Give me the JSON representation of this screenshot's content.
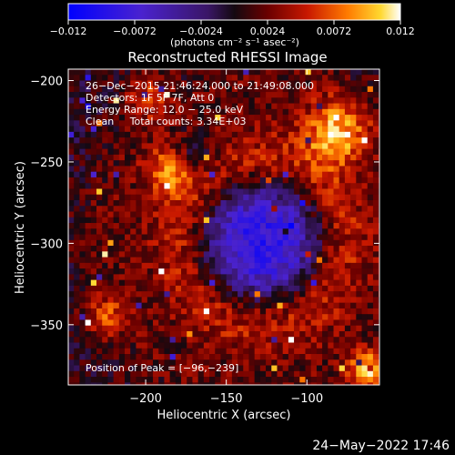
{
  "chart_data": {
    "type": "heatmap",
    "title": "Reconstructed RHESSI Image",
    "xlabel": "Heliocentric X (arcsec)",
    "ylabel": "Heliocentric Y (arcsec)",
    "xlim": [
      -248,
      -55
    ],
    "ylim": [
      -387,
      -193
    ],
    "x_ticks": [
      -200,
      -150,
      -100
    ],
    "x_tick_labels": [
      "−200",
      "−150",
      "−100"
    ],
    "y_ticks": [
      -200,
      -250,
      -300,
      -350
    ],
    "y_tick_labels": [
      "−200",
      "−250",
      "−300",
      "−350"
    ],
    "colorbar": {
      "range": [
        -0.012,
        0.012
      ],
      "ticks": [
        -0.012,
        -0.0072,
        -0.0024,
        0.0024,
        0.0072,
        0.012
      ],
      "tick_labels": [
        "−0.012",
        "−0.0072",
        "−0.0024",
        "0.0024",
        "0.0072",
        "0.012"
      ],
      "unit_label": "(photons cm⁻² s⁻¹ asec⁻²)"
    },
    "info_lines": [
      "26−Dec−2015 21:46:24.000 to 21:49:08.000",
      "Detectors: 1F 5F 7F, Att 0",
      "Energy Range: 12.0 − 25.0 keV",
      "Clean     Total counts: 3.34E+03"
    ],
    "peak_label": "Position of Peak = [−96,−239]",
    "peak": [
      -96,
      -239
    ],
    "features": {
      "ring_center": [
        -128,
        -299
      ],
      "ring_radius": 50,
      "ring_peak": 0.005,
      "core_center": [
        -128,
        -299
      ],
      "core_sigma": 22,
      "core_peak": -0.009,
      "bright_spots": [
        {
          "center": [
            -82,
            -232
          ],
          "sigma": 14,
          "peak": 0.008
        },
        {
          "center": [
            -62,
            -378
          ],
          "sigma": 8,
          "peak": 0.009
        },
        {
          "center": [
            -185,
            -255
          ],
          "sigma": 10,
          "peak": 0.007
        },
        {
          "center": [
            -200,
            -210
          ],
          "sigma": 10,
          "peak": 0.005
        },
        {
          "center": [
            -225,
            -345
          ],
          "sigma": 9,
          "peak": 0.005
        }
      ],
      "dim_spot": {
        "center": [
          -170,
          -247
        ],
        "sigma": 10,
        "peak": -0.004
      }
    }
  },
  "timestamp": "24−May−2022 17:46"
}
